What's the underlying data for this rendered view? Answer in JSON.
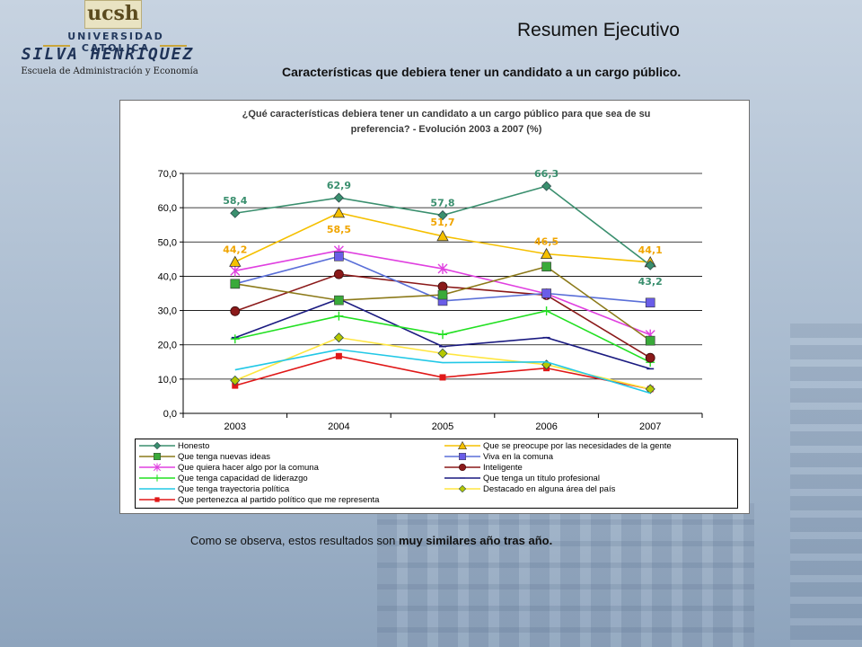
{
  "logo": {
    "short": "ucsh",
    "university": "UNIVERSIDAD CATOLICA",
    "name": "SILVA HENRIQUEZ",
    "school": "Escuela de Administración y Economía"
  },
  "header": {
    "title": "Resumen Ejecutivo",
    "subtitle": "Características que debiera tener un candidato a un cargo público."
  },
  "chart_data": {
    "type": "line",
    "title_line1": "¿Qué características debiera tener un candidato a un cargo público para que sea de su",
    "title_line2": "preferencia?  - Evolución 2003 a 2007 (%)",
    "categories": [
      "2003",
      "2004",
      "2005",
      "2006",
      "2007"
    ],
    "ylim": [
      0,
      70
    ],
    "yticks": [
      "0,0",
      "10,0",
      "20,0",
      "30,0",
      "40,0",
      "50,0",
      "60,0",
      "70,0"
    ],
    "grid": true,
    "legend_position": "bottom",
    "series": [
      {
        "name": "Honesto",
        "values": [
          58.4,
          62.9,
          57.8,
          66.3,
          43.2
        ],
        "color": "#3a8f6e",
        "marker": "diamond",
        "labels": [
          "58,4",
          "62,9",
          "57,8",
          "66,3",
          "43,2"
        ],
        "labelColor": "#3a8f6e"
      },
      {
        "name": "Que se preocupe por las necesidades de la gente",
        "values": [
          44.2,
          58.5,
          51.7,
          46.5,
          44.1
        ],
        "color": "#f5c000",
        "marker": "triangle",
        "labels": [
          "44,2",
          "58,5",
          "51,7",
          "46,5",
          "44,1"
        ],
        "labelColor": "#f0a500"
      },
      {
        "name": "Que tenga nuevas ideas",
        "values": [
          37.8,
          33.0,
          34.6,
          42.8,
          21.2
        ],
        "color": "#8c7a1a",
        "marker": "square",
        "markerColor": "#3aaa3a"
      },
      {
        "name": "Viva en la comuna",
        "values": [
          37.8,
          45.8,
          32.8,
          35.0,
          32.3
        ],
        "color": "#5a6fd8",
        "marker": "square",
        "markerColor": "#6a5de8"
      },
      {
        "name": "Que quiera hacer algo por la comuna",
        "values": [
          41.6,
          47.5,
          42.2,
          34.9,
          22.9
        ],
        "color": "#e040e0",
        "marker": "star"
      },
      {
        "name": "Inteligente",
        "values": [
          29.8,
          40.6,
          37.0,
          34.5,
          16.2
        ],
        "color": "#8b1a1a",
        "marker": "circle"
      },
      {
        "name": "Que tenga capacidad de liderazgo",
        "values": [
          21.7,
          28.4,
          23.0,
          29.9,
          14.9
        ],
        "color": "#22e022",
        "marker": "plus"
      },
      {
        "name": "Que tenga un título profesional",
        "values": [
          22.1,
          33.4,
          19.5,
          22.1,
          13.0
        ],
        "color": "#1a1a80",
        "marker": "dash"
      },
      {
        "name": "Que tenga trayectoria política",
        "values": [
          12.7,
          18.6,
          14.8,
          15.0,
          5.9
        ],
        "color": "#22c8e6",
        "marker": "none"
      },
      {
        "name": "Destacado en alguna área del país",
        "values": [
          9.6,
          22.1,
          17.5,
          14.2,
          7.1
        ],
        "color": "#ffe640",
        "marker": "diamond",
        "markerColor": "#b5c800"
      },
      {
        "name": "Que pertenezca al partido político que me representa",
        "values": [
          8.1,
          16.7,
          10.5,
          13.2,
          7.1
        ],
        "color": "#e01818",
        "marker": "smallsquare"
      }
    ]
  },
  "footer": {
    "text": "Como se observa, estos resultados son ",
    "bold": "muy similares año tras año."
  }
}
